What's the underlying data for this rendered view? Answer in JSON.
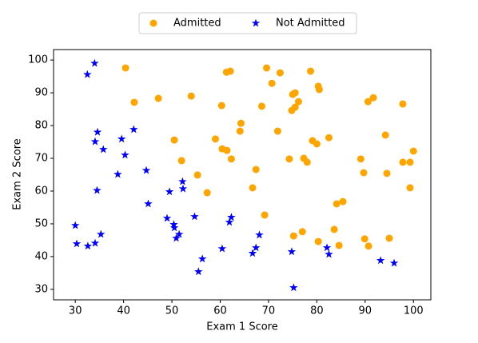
{
  "chart_data": {
    "type": "scatter",
    "x_label": "Exam 1 Score",
    "y_label": "Exam 2 Score",
    "xlim": [
      25.5,
      103.6
    ],
    "ylim": [
      26.8,
      103.2
    ],
    "xticks": [
      30,
      40,
      50,
      60,
      70,
      80,
      90,
      100
    ],
    "yticks": [
      30,
      40,
      50,
      60,
      70,
      80,
      90,
      100
    ],
    "legend": "top",
    "series": [
      {
        "name": "Admitted",
        "color": "#ffa500",
        "marker": "circle",
        "x": [
          40.4,
          42.2,
          47.2,
          54.0,
          50.5,
          52.0,
          55.3,
          57.3,
          59.0,
          60.3,
          60.4,
          61.3,
          62.1,
          61.4,
          62.3,
          64.3,
          64.1,
          66.7,
          67.4,
          68.6,
          69.2,
          69.6,
          70.7,
          72.4,
          71.9,
          74.3,
          74.8,
          75.0,
          75.5,
          76.2,
          75.5,
          75.2,
          77.0,
          77.3,
          78.0,
          78.7,
          79.1,
          80.0,
          80.3,
          80.5,
          80.3,
          82.5,
          83.6,
          84.1,
          84.6,
          85.4,
          89.1,
          89.7,
          89.9,
          90.6,
          90.7,
          91.7,
          94.2,
          94.5,
          95.0,
          97.8,
          97.8,
          99.3,
          99.3,
          100.0
        ],
        "values": [
          97.6,
          87.1,
          88.3,
          89.0,
          75.6,
          69.3,
          64.9,
          59.5,
          75.9,
          86.1,
          72.9,
          96.3,
          96.6,
          72.4,
          69.8,
          80.7,
          78.3,
          61.0,
          66.6,
          85.9,
          52.7,
          97.6,
          92.9,
          96.1,
          78.3,
          69.8,
          84.6,
          89.5,
          90.0,
          87.3,
          85.6,
          46.3,
          47.6,
          70.0,
          68.8,
          96.6,
          75.4,
          74.4,
          92.0,
          91.0,
          44.6,
          76.3,
          48.3,
          56.1,
          43.4,
          56.8,
          69.8,
          65.6,
          45.4,
          87.3,
          43.2,
          88.5,
          77.1,
          65.4,
          45.6,
          86.6,
          68.8,
          68.8,
          61.0,
          72.2
        ]
      },
      {
        "name": "Not Admitted",
        "color": "#0000ff",
        "marker": "star",
        "x": [
          32.5,
          34.0,
          34.1,
          34.6,
          35.8,
          34.5,
          30.0,
          30.3,
          32.6,
          34.1,
          35.3,
          38.8,
          39.6,
          40.3,
          42.1,
          44.7,
          45.1,
          49.0,
          49.5,
          50.4,
          50.5,
          50.9,
          51.5,
          52.2,
          52.3,
          54.7,
          55.5,
          56.3,
          60.4,
          61.9,
          62.3,
          66.7,
          67.4,
          68.1,
          74.8,
          75.2,
          82.1,
          82.5,
          93.2,
          96.0
        ],
        "values": [
          95.6,
          99.0,
          75.1,
          78.0,
          72.7,
          60.2,
          49.5,
          43.9,
          43.2,
          44.1,
          46.8,
          65.1,
          75.9,
          71.0,
          78.8,
          66.3,
          56.1,
          51.7,
          59.8,
          49.8,
          48.8,
          45.6,
          46.8,
          62.9,
          60.7,
          52.2,
          35.4,
          39.3,
          42.4,
          50.5,
          52.0,
          41.0,
          42.7,
          46.6,
          41.5,
          30.5,
          42.7,
          40.7,
          38.8,
          38.0
        ]
      }
    ]
  }
}
